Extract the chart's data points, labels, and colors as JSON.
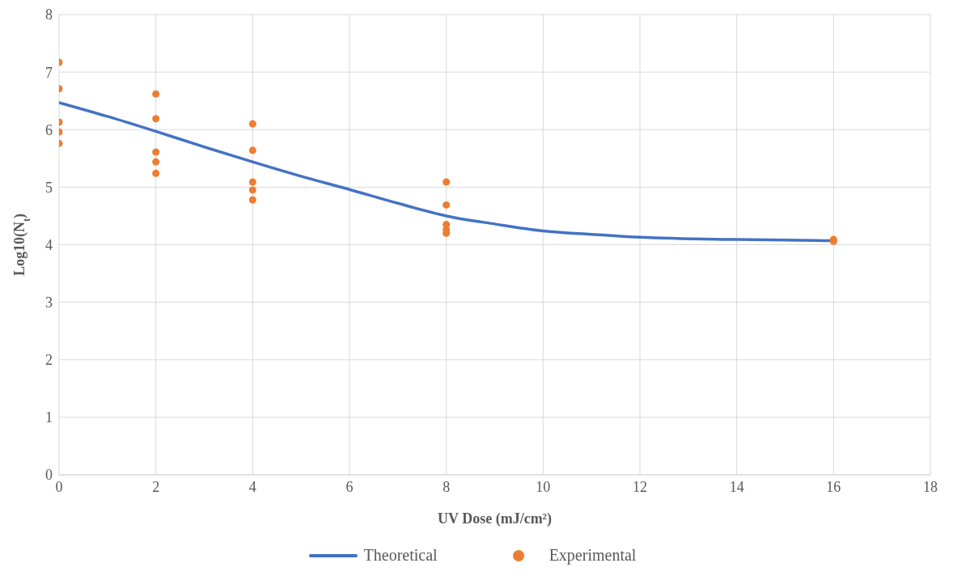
{
  "chart_data": {
    "type": "line",
    "xlabel": "UV Dose (mJ/cm²)",
    "ylabel": "Log10(N$_{t}$)",
    "xlim": [
      0,
      18
    ],
    "xticks": [
      0,
      2,
      4,
      6,
      8,
      10,
      12,
      14,
      16,
      18
    ],
    "ylim": [
      0,
      8
    ],
    "yticks": [
      0,
      1,
      2,
      3,
      4,
      5,
      6,
      7,
      8
    ],
    "grid": true,
    "legend": "bottom",
    "series": [
      {
        "name": "Theoretical",
        "type": "line",
        "color": "#4472c4",
        "marker": "none",
        "line_style": "solid",
        "x": [
          0,
          1,
          2,
          3,
          4,
          5,
          6,
          7,
          8,
          9,
          10,
          11,
          12,
          14,
          16
        ],
        "values": [
          6.47,
          6.23,
          5.97,
          5.7,
          5.44,
          5.19,
          4.96,
          4.72,
          4.5,
          4.36,
          4.24,
          4.18,
          4.13,
          4.09,
          4.07
        ]
      },
      {
        "name": "Experimental",
        "type": "scatter",
        "color": "#ed7d31",
        "marker": "circle",
        "x": [
          0,
          0,
          0,
          0,
          0,
          2,
          2,
          2,
          2,
          2,
          4,
          4,
          4,
          4,
          4,
          8,
          8,
          8,
          8,
          8,
          16,
          16
        ],
        "values": [
          7.17,
          6.71,
          6.13,
          5.96,
          5.76,
          6.62,
          6.19,
          5.61,
          5.44,
          5.24,
          6.1,
          5.64,
          5.09,
          4.95,
          4.78,
          5.09,
          4.69,
          4.35,
          4.26,
          4.2,
          4.09,
          4.06
        ]
      }
    ]
  }
}
